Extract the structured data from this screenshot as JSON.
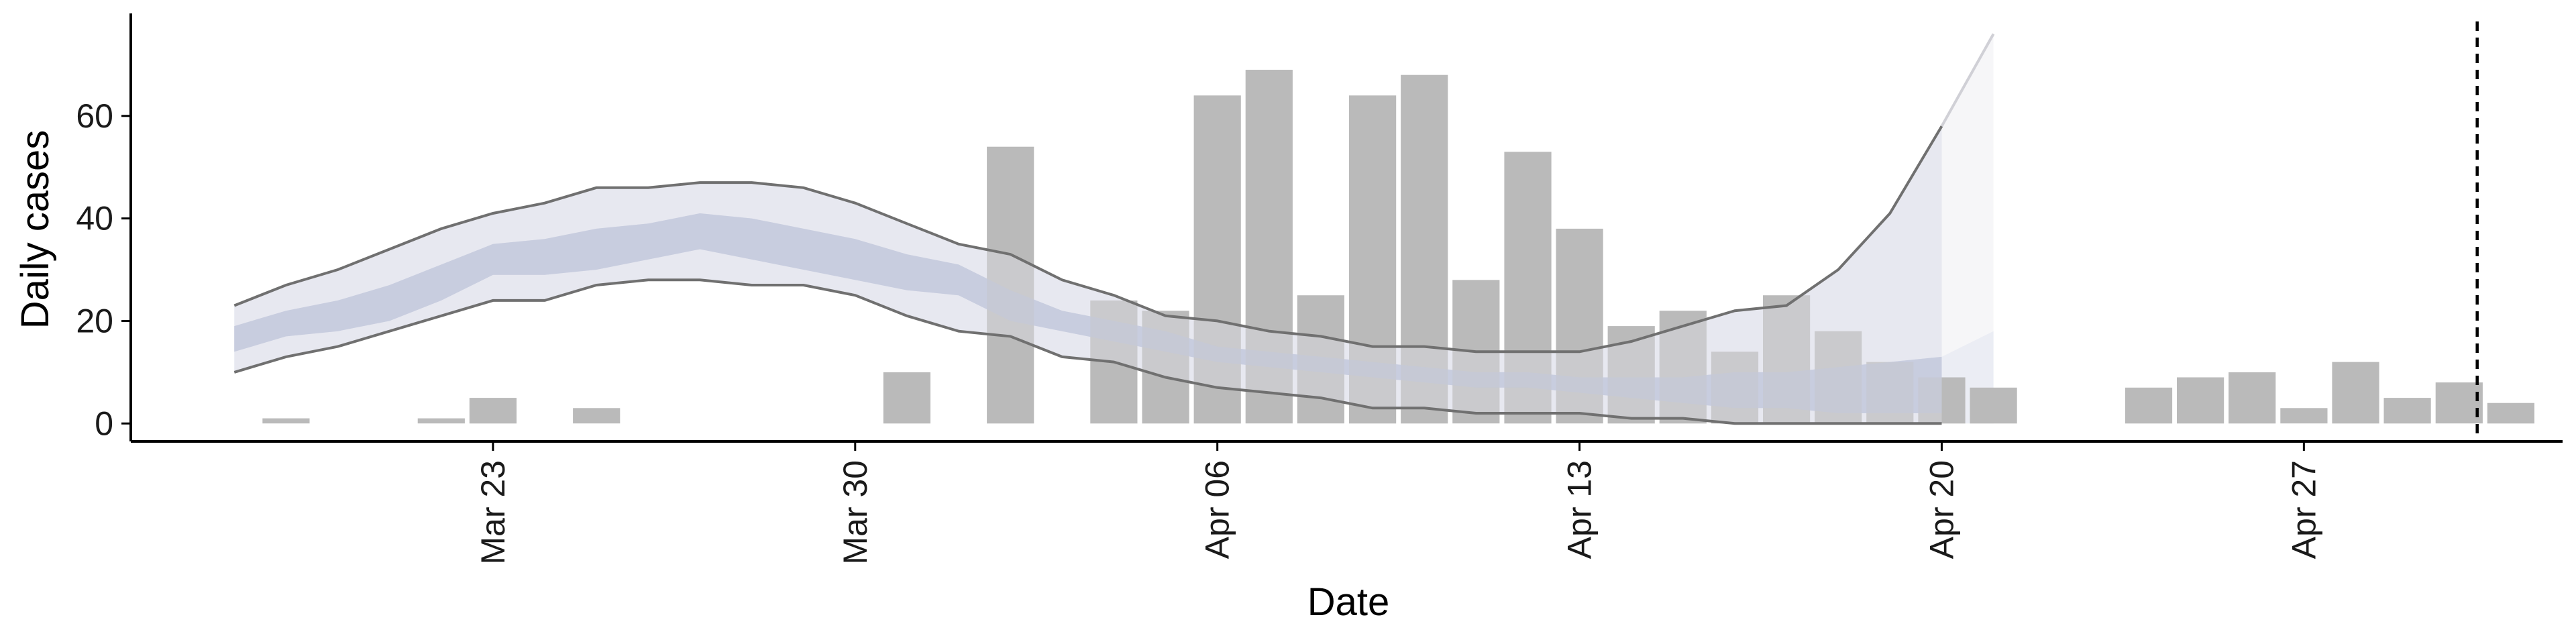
{
  "chart_data": {
    "type": "bar",
    "title": "",
    "xlabel": "Date",
    "ylabel": "Daily cases",
    "ylim": [
      -3.5,
      80
    ],
    "yticks": [
      0,
      20,
      40,
      60
    ],
    "x_tick_labels": [
      {
        "date": "2020-03-23",
        "label": "Mar 23"
      },
      {
        "date": "2020-03-30",
        "label": "Mar 30"
      },
      {
        "date": "2020-04-06",
        "label": "Apr 06"
      },
      {
        "date": "2020-04-13",
        "label": "Apr 13"
      },
      {
        "date": "2020-04-20",
        "label": "Apr 20"
      },
      {
        "date": "2020-04-27",
        "label": "Apr 27"
      }
    ],
    "xlim": [
      "2020-03-16",
      "2020-05-02"
    ],
    "grid": false,
    "legend": "none",
    "cutoff_date": "2020-04-30",
    "colors": {
      "bars": "#bababa",
      "ribbon_outer": "#e7e8f0",
      "ribbon_inner": "#c2c8dc",
      "bound_line": "#707070",
      "projection_outer": "#f4f4f7",
      "projection_line": "#d0d0d6",
      "cutoff": "#000000"
    },
    "daily_cases": [
      {
        "date": "2020-03-19",
        "value": 1
      },
      {
        "date": "2020-03-22",
        "value": 1
      },
      {
        "date": "2020-03-23",
        "value": 5
      },
      {
        "date": "2020-03-25",
        "value": 3
      },
      {
        "date": "2020-03-31",
        "value": 10
      },
      {
        "date": "2020-04-02",
        "value": 54
      },
      {
        "date": "2020-04-04",
        "value": 24
      },
      {
        "date": "2020-04-05",
        "value": 22
      },
      {
        "date": "2020-04-06",
        "value": 64
      },
      {
        "date": "2020-04-07",
        "value": 69
      },
      {
        "date": "2020-04-08",
        "value": 25
      },
      {
        "date": "2020-04-09",
        "value": 64
      },
      {
        "date": "2020-04-10",
        "value": 68
      },
      {
        "date": "2020-04-11",
        "value": 28
      },
      {
        "date": "2020-04-12",
        "value": 53
      },
      {
        "date": "2020-04-13",
        "value": 38
      },
      {
        "date": "2020-04-14",
        "value": 19
      },
      {
        "date": "2020-04-15",
        "value": 22
      },
      {
        "date": "2020-04-16",
        "value": 14
      },
      {
        "date": "2020-04-17",
        "value": 25
      },
      {
        "date": "2020-04-18",
        "value": 18
      },
      {
        "date": "2020-04-19",
        "value": 12
      },
      {
        "date": "2020-04-20",
        "value": 9
      },
      {
        "date": "2020-04-21",
        "value": 7
      },
      {
        "date": "2020-04-24",
        "value": 7
      },
      {
        "date": "2020-04-25",
        "value": 9
      },
      {
        "date": "2020-04-26",
        "value": 10
      },
      {
        "date": "2020-04-27",
        "value": 3
      },
      {
        "date": "2020-04-28",
        "value": 12
      },
      {
        "date": "2020-04-29",
        "value": 5
      },
      {
        "date": "2020-04-30",
        "value": 8
      },
      {
        "date": "2020-05-01",
        "value": 4
      }
    ],
    "estimate": {
      "dates": [
        "2020-03-18",
        "2020-03-19",
        "2020-03-20",
        "2020-03-21",
        "2020-03-22",
        "2020-03-23",
        "2020-03-24",
        "2020-03-25",
        "2020-03-26",
        "2020-03-27",
        "2020-03-28",
        "2020-03-29",
        "2020-03-30",
        "2020-03-31",
        "2020-04-01",
        "2020-04-02",
        "2020-04-03",
        "2020-04-04",
        "2020-04-05",
        "2020-04-06",
        "2020-04-07",
        "2020-04-08",
        "2020-04-09",
        "2020-04-10",
        "2020-04-11",
        "2020-04-12",
        "2020-04-13",
        "2020-04-14",
        "2020-04-15",
        "2020-04-16",
        "2020-04-17",
        "2020-04-18",
        "2020-04-19",
        "2020-04-20"
      ],
      "lower_90": [
        10,
        13,
        15,
        18,
        21,
        24,
        24,
        27,
        28,
        28,
        27,
        27,
        25,
        21,
        18,
        17,
        13,
        12,
        9,
        7,
        6,
        5,
        3,
        3,
        2,
        2,
        2,
        1,
        1,
        0,
        0,
        0,
        0,
        0
      ],
      "lower_50": [
        14,
        17,
        18,
        20,
        24,
        29,
        29,
        30,
        32,
        34,
        32,
        30,
        28,
        26,
        25,
        20,
        18,
        16,
        14,
        12,
        11,
        10,
        9,
        8,
        7,
        7,
        6,
        5,
        4,
        3,
        3,
        2,
        2,
        2
      ],
      "upper_50": [
        19,
        22,
        24,
        27,
        31,
        35,
        36,
        38,
        39,
        41,
        40,
        38,
        36,
        33,
        31,
        26,
        22,
        20,
        18,
        15,
        14,
        13,
        12,
        11,
        10,
        10,
        9,
        9,
        9,
        10,
        10,
        11,
        12,
        13
      ],
      "upper_90": [
        23,
        27,
        30,
        34,
        38,
        41,
        43,
        46,
        46,
        47,
        47,
        46,
        43,
        39,
        35,
        33,
        28,
        25,
        21,
        20,
        18,
        17,
        15,
        15,
        14,
        14,
        14,
        16,
        19,
        22,
        23,
        30,
        41,
        58
      ]
    },
    "projection": {
      "dates": [
        "2020-04-20",
        "2020-04-21"
      ],
      "upper_90": [
        58,
        76
      ],
      "upper_50": [
        13,
        18
      ]
    }
  }
}
